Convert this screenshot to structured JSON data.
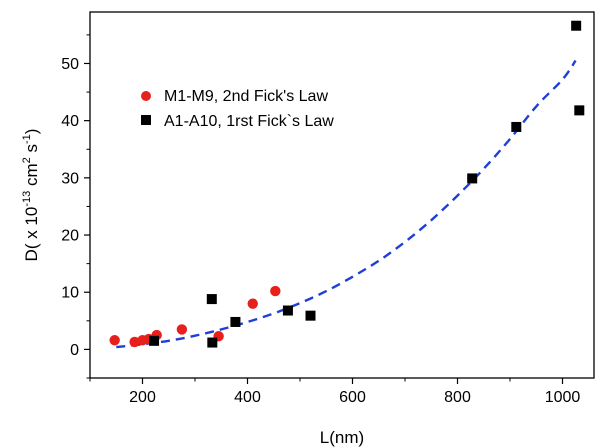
{
  "chart_data": {
    "type": "scatter",
    "xlabel": "L(nm)",
    "ylabel": {
      "prefix": "D( x 10",
      "exp1": "-13",
      "mid": " cm",
      "exp2": "2",
      "mid2": " s",
      "exp3": "-1",
      "suffix": ")"
    },
    "xlim": [
      100,
      1060
    ],
    "ylim": [
      -5,
      59
    ],
    "xticks": [
      200,
      400,
      600,
      800,
      1000
    ],
    "yticks": [
      0,
      10,
      20,
      30,
      40,
      50
    ],
    "grid": false,
    "legend_position": "top-left",
    "series": [
      {
        "name": "M1-M9, 2nd Fick's Law",
        "marker": "circle",
        "color": "#e8201c",
        "points": [
          [
            147,
            1.6
          ],
          [
            185,
            1.3
          ],
          [
            200,
            1.6
          ],
          [
            212,
            1.8
          ],
          [
            227,
            2.5
          ],
          [
            275,
            3.5
          ],
          [
            345,
            2.3
          ],
          [
            410,
            8.0
          ],
          [
            453,
            10.2
          ]
        ]
      },
      {
        "name": "A1-A10, 1rst Fick`s Law",
        "marker": "square",
        "color": "#000000",
        "points": [
          [
            222,
            1.5
          ],
          [
            332,
            8.8
          ],
          [
            333,
            1.2
          ],
          [
            377,
            4.8
          ],
          [
            477,
            6.8
          ],
          [
            520,
            5.9
          ],
          [
            828,
            29.9
          ],
          [
            912,
            38.9
          ],
          [
            1026,
            56.6
          ],
          [
            1032,
            41.8
          ]
        ]
      }
    ],
    "fit": {
      "style": "dashed",
      "color": "#1f3fd8",
      "points": [
        [
          150,
          0.4
        ],
        [
          200,
          0.9
        ],
        [
          250,
          1.5
        ],
        [
          300,
          2.4
        ],
        [
          350,
          3.5
        ],
        [
          400,
          4.8
        ],
        [
          450,
          6.3
        ],
        [
          500,
          8.1
        ],
        [
          550,
          10.2
        ],
        [
          600,
          12.7
        ],
        [
          650,
          15.5
        ],
        [
          700,
          18.8
        ],
        [
          750,
          22.6
        ],
        [
          800,
          26.9
        ],
        [
          850,
          31.6
        ],
        [
          900,
          36.8
        ],
        [
          950,
          42.5
        ],
        [
          1000,
          47.2
        ],
        [
          1025,
          50.5
        ]
      ]
    }
  }
}
